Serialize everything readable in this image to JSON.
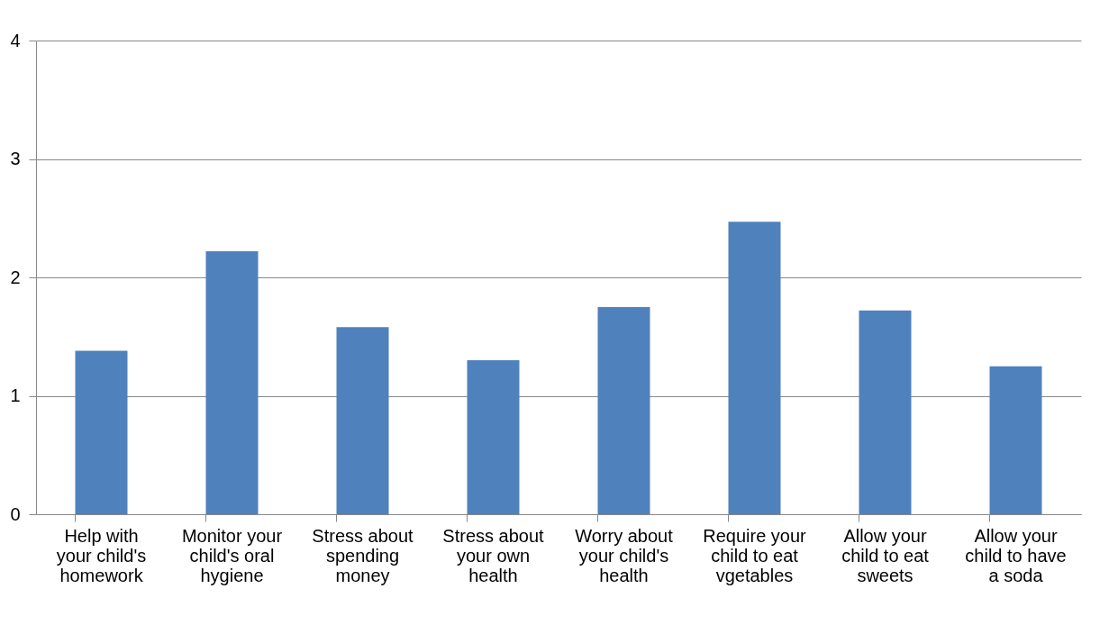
{
  "chart_data": {
    "type": "bar",
    "categories": [
      "Help with your child's homework",
      "Monitor your child's oral hygiene",
      "Stress about spending money",
      "Stress about your own health",
      "Worry about your child's health",
      "Require your child to eat vgetables",
      "Allow your child to eat sweets",
      "Allow your child to have a soda"
    ],
    "values": [
      1.38,
      2.22,
      1.58,
      1.3,
      1.75,
      2.47,
      1.72,
      1.25
    ],
    "color": "#4f81bd",
    "ylim": [
      0,
      4
    ],
    "yticks": [
      0,
      1,
      2,
      3,
      4
    ],
    "grid": "y"
  }
}
